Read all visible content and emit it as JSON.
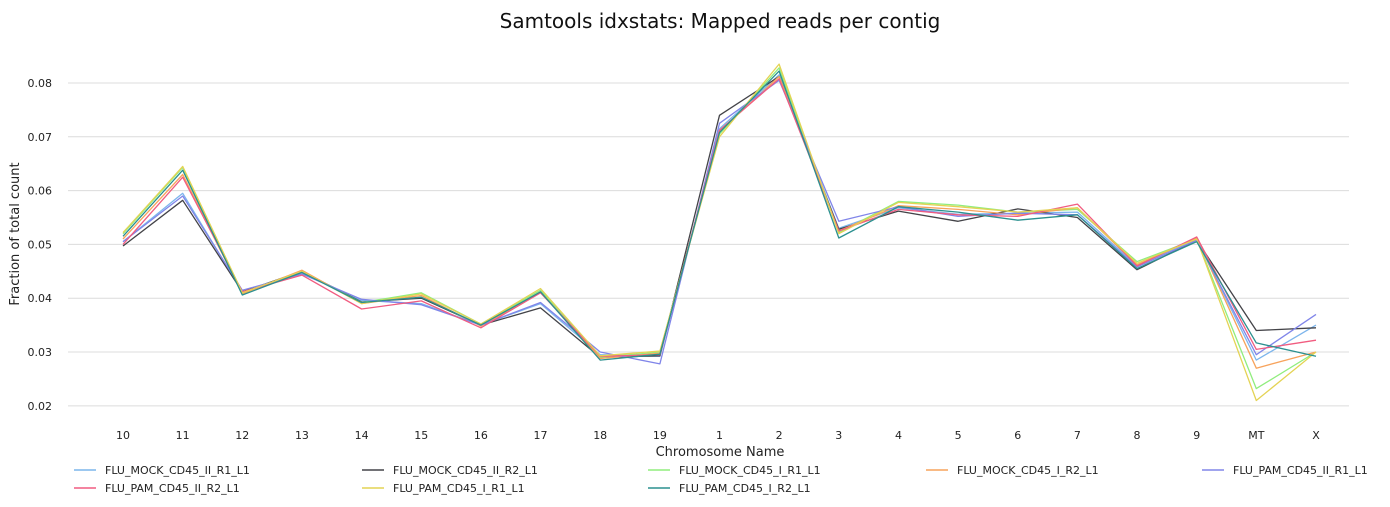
{
  "chart_data": {
    "type": "line",
    "title": "Samtools idxstats: Mapped reads per contig",
    "xlabel": "Chromosome Name",
    "ylabel": "Fraction of total count",
    "ylim": [
      0.017,
      0.0865
    ],
    "yticks": [
      0.02,
      0.03,
      0.04,
      0.05,
      0.06,
      0.07,
      0.08
    ],
    "ytick_labels": [
      "0.02",
      "0.03",
      "0.04",
      "0.05",
      "0.06",
      "0.07",
      "0.08"
    ],
    "grid": true,
    "legend": "bottom",
    "categories": [
      "10",
      "11",
      "12",
      "13",
      "14",
      "15",
      "16",
      "17",
      "18",
      "19",
      "1",
      "2",
      "3",
      "4",
      "5",
      "6",
      "7",
      "8",
      "9",
      "MT",
      "X"
    ],
    "series": [
      {
        "name": "FLU_MOCK_CD45_II_R1_L1",
        "color": "#7cb5ec",
        "values": [
          0.0505,
          0.0595,
          0.0412,
          0.0447,
          0.0396,
          0.039,
          0.035,
          0.039,
          0.0295,
          0.0292,
          0.0715,
          0.0815,
          0.053,
          0.0568,
          0.0556,
          0.0558,
          0.056,
          0.046,
          0.051,
          0.0285,
          0.035
        ]
      },
      {
        "name": "FLU_MOCK_CD45_II_R2_L1",
        "color": "#434348",
        "values": [
          0.0497,
          0.0582,
          0.0412,
          0.045,
          0.0393,
          0.04,
          0.035,
          0.0382,
          0.029,
          0.0293,
          0.074,
          0.0812,
          0.0528,
          0.0562,
          0.0543,
          0.0566,
          0.055,
          0.0453,
          0.0508,
          0.034,
          0.0345
        ]
      },
      {
        "name": "FLU_MOCK_CD45_I_R1_L1",
        "color": "#90ed7d",
        "values": [
          0.052,
          0.0643,
          0.041,
          0.045,
          0.0392,
          0.041,
          0.0352,
          0.0415,
          0.029,
          0.03,
          0.0705,
          0.0828,
          0.0522,
          0.058,
          0.0573,
          0.056,
          0.0565,
          0.0468,
          0.051,
          0.0232,
          0.03
        ]
      },
      {
        "name": "FLU_MOCK_CD45_I_R2_L1",
        "color": "#f7a35c",
        "values": [
          0.051,
          0.063,
          0.0408,
          0.0452,
          0.039,
          0.0405,
          0.0348,
          0.0412,
          0.0288,
          0.0298,
          0.071,
          0.0812,
          0.0525,
          0.0572,
          0.0565,
          0.0555,
          0.0568,
          0.0462,
          0.0512,
          0.027,
          0.03
        ]
      },
      {
        "name": "FLU_PAM_CD45_II_R1_L1",
        "color": "#8085e9",
        "values": [
          0.0505,
          0.059,
          0.0415,
          0.0445,
          0.0398,
          0.0388,
          0.035,
          0.0392,
          0.03,
          0.0278,
          0.0725,
          0.0805,
          0.0543,
          0.057,
          0.0552,
          0.0558,
          0.0555,
          0.0458,
          0.0508,
          0.0295,
          0.037
        ]
      },
      {
        "name": "FLU_PAM_CD45_II_R2_L1",
        "color": "#f15c80",
        "values": [
          0.05,
          0.0625,
          0.0412,
          0.0443,
          0.038,
          0.0395,
          0.0345,
          0.041,
          0.0292,
          0.0295,
          0.0712,
          0.0808,
          0.0525,
          0.0565,
          0.0555,
          0.0552,
          0.0575,
          0.046,
          0.0514,
          0.0305,
          0.0322
        ]
      },
      {
        "name": "FLU_PAM_CD45_I_R1_L1",
        "color": "#e4d354",
        "values": [
          0.0522,
          0.0645,
          0.041,
          0.045,
          0.039,
          0.0408,
          0.0352,
          0.0418,
          0.0293,
          0.0302,
          0.07,
          0.0835,
          0.052,
          0.0578,
          0.057,
          0.056,
          0.0568,
          0.0465,
          0.051,
          0.021,
          0.03
        ]
      },
      {
        "name": "FLU_PAM_CD45_I_R2_L1",
        "color": "#2b908f",
        "values": [
          0.0515,
          0.0638,
          0.0406,
          0.0448,
          0.0392,
          0.0402,
          0.035,
          0.0412,
          0.0285,
          0.0296,
          0.0708,
          0.0822,
          0.0512,
          0.057,
          0.056,
          0.0545,
          0.0555,
          0.0455,
          0.0505,
          0.0317,
          0.0292
        ]
      }
    ]
  }
}
